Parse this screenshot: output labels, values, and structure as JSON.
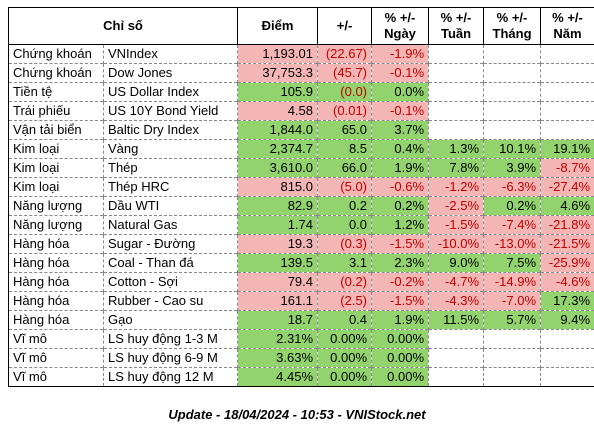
{
  "headers": [
    "Chỉ số",
    "",
    "Điểm",
    "+/-",
    "% +/-\nNgày",
    "% +/-\nTuần",
    "% +/-\nTháng",
    "% +/-\nNăm"
  ],
  "rows": [
    {
      "cat": "Chứng khoán",
      "name": "VNIndex",
      "point": "1,193.01",
      "change": "(22.67)",
      "day": "-1.9%",
      "week": "",
      "month": "",
      "year": ""
    },
    {
      "cat": "Chứng khoán",
      "name": "Dow Jones",
      "point": "37,753.3",
      "change": "(45.7)",
      "day": "-0.1%",
      "week": "",
      "month": "",
      "year": ""
    },
    {
      "cat": "Tiền tệ",
      "name": "US Dollar Index",
      "point": "105.9",
      "change": "(0.0)",
      "day": "0.0%",
      "week": "",
      "month": "",
      "year": ""
    },
    {
      "cat": "Trái phiếu",
      "name": "US 10Y Bond Yield",
      "point": "4.58",
      "change": "(0.01)",
      "day": "-0.1%",
      "week": "",
      "month": "",
      "year": ""
    },
    {
      "cat": "Vận tải biển",
      "name": "Baltic Dry Index",
      "point": "1,844.0",
      "change": "65.0",
      "day": "3.7%",
      "week": "",
      "month": "",
      "year": ""
    },
    {
      "cat": "Kim loại",
      "name": "Vàng",
      "point": "2,374.7",
      "change": "8.5",
      "day": "0.4%",
      "week": "1.3%",
      "month": "10.1%",
      "year": "19.1%"
    },
    {
      "cat": "Kim loại",
      "name": "Thép",
      "point": "3,610.0",
      "change": "66.0",
      "day": "1.9%",
      "week": "7.8%",
      "month": "3.9%",
      "year": "-8.7%"
    },
    {
      "cat": "Kim loại",
      "name": "Thép HRC",
      "point": "815.0",
      "change": "(5.0)",
      "day": "-0.6%",
      "week": "-1.2%",
      "month": "-6.3%",
      "year": "-27.4%"
    },
    {
      "cat": "Năng lượng",
      "name": "Dầu WTI",
      "point": "82.9",
      "change": "0.2",
      "day": "0.2%",
      "week": "-2.5%",
      "month": "0.2%",
      "year": "4.6%"
    },
    {
      "cat": "Năng lượng",
      "name": "Natural Gas",
      "point": "1.74",
      "change": "0.0",
      "day": "1.2%",
      "week": "-1.5%",
      "month": "-7.4%",
      "year": "-21.8%"
    },
    {
      "cat": "Hàng hóa",
      "name": "Sugar - Đường",
      "point": "19.3",
      "change": "(0.3)",
      "day": "-1.5%",
      "week": "-10.0%",
      "month": "-13.0%",
      "year": "-21.5%"
    },
    {
      "cat": "Hàng hóa",
      "name": "Coal - Than đá",
      "point": "139.5",
      "change": "3.1",
      "day": "2.3%",
      "week": "9.0%",
      "month": "7.5%",
      "year": "-25.9%"
    },
    {
      "cat": "Hàng hóa",
      "name": "Cotton - Sợi",
      "point": "79.4",
      "change": "(0.2)",
      "day": "-0.2%",
      "week": "-4.7%",
      "month": "-14.9%",
      "year": "-4.6%"
    },
    {
      "cat": "Hàng hóa",
      "name": "Rubber - Cao su",
      "point": "161.1",
      "change": "(2.5)",
      "day": "-1.5%",
      "week": "-4.3%",
      "month": "-7.0%",
      "year": "17.3%"
    },
    {
      "cat": "Hàng hóa",
      "name": "Gạo",
      "point": "18.7",
      "change": "0.4",
      "day": "1.9%",
      "week": "11.5%",
      "month": "5.7%",
      "year": "9.4%"
    },
    {
      "cat": "Vĩ mô",
      "name": "LS huy động 1-3 M",
      "point": "2.31%",
      "change": "0.00%",
      "day": "0.00%",
      "week": "",
      "month": "",
      "year": ""
    },
    {
      "cat": "Vĩ mô",
      "name": "LS huy động 6-9 M",
      "point": "3.63%",
      "change": "0.00%",
      "day": "0.00%",
      "week": "",
      "month": "",
      "year": ""
    },
    {
      "cat": "Vĩ mô",
      "name": "LS huy động 12 M",
      "point": "4.45%",
      "change": "0.00%",
      "day": "0.00%",
      "week": "",
      "month": "",
      "year": ""
    }
  ],
  "footer": "Update - 18/04/2024 - 10:53 - VNIStock.net",
  "colors": {
    "positive_bg": "#92d36e",
    "negative_bg": "#f4b5b5",
    "negative_text": "#c00000"
  }
}
